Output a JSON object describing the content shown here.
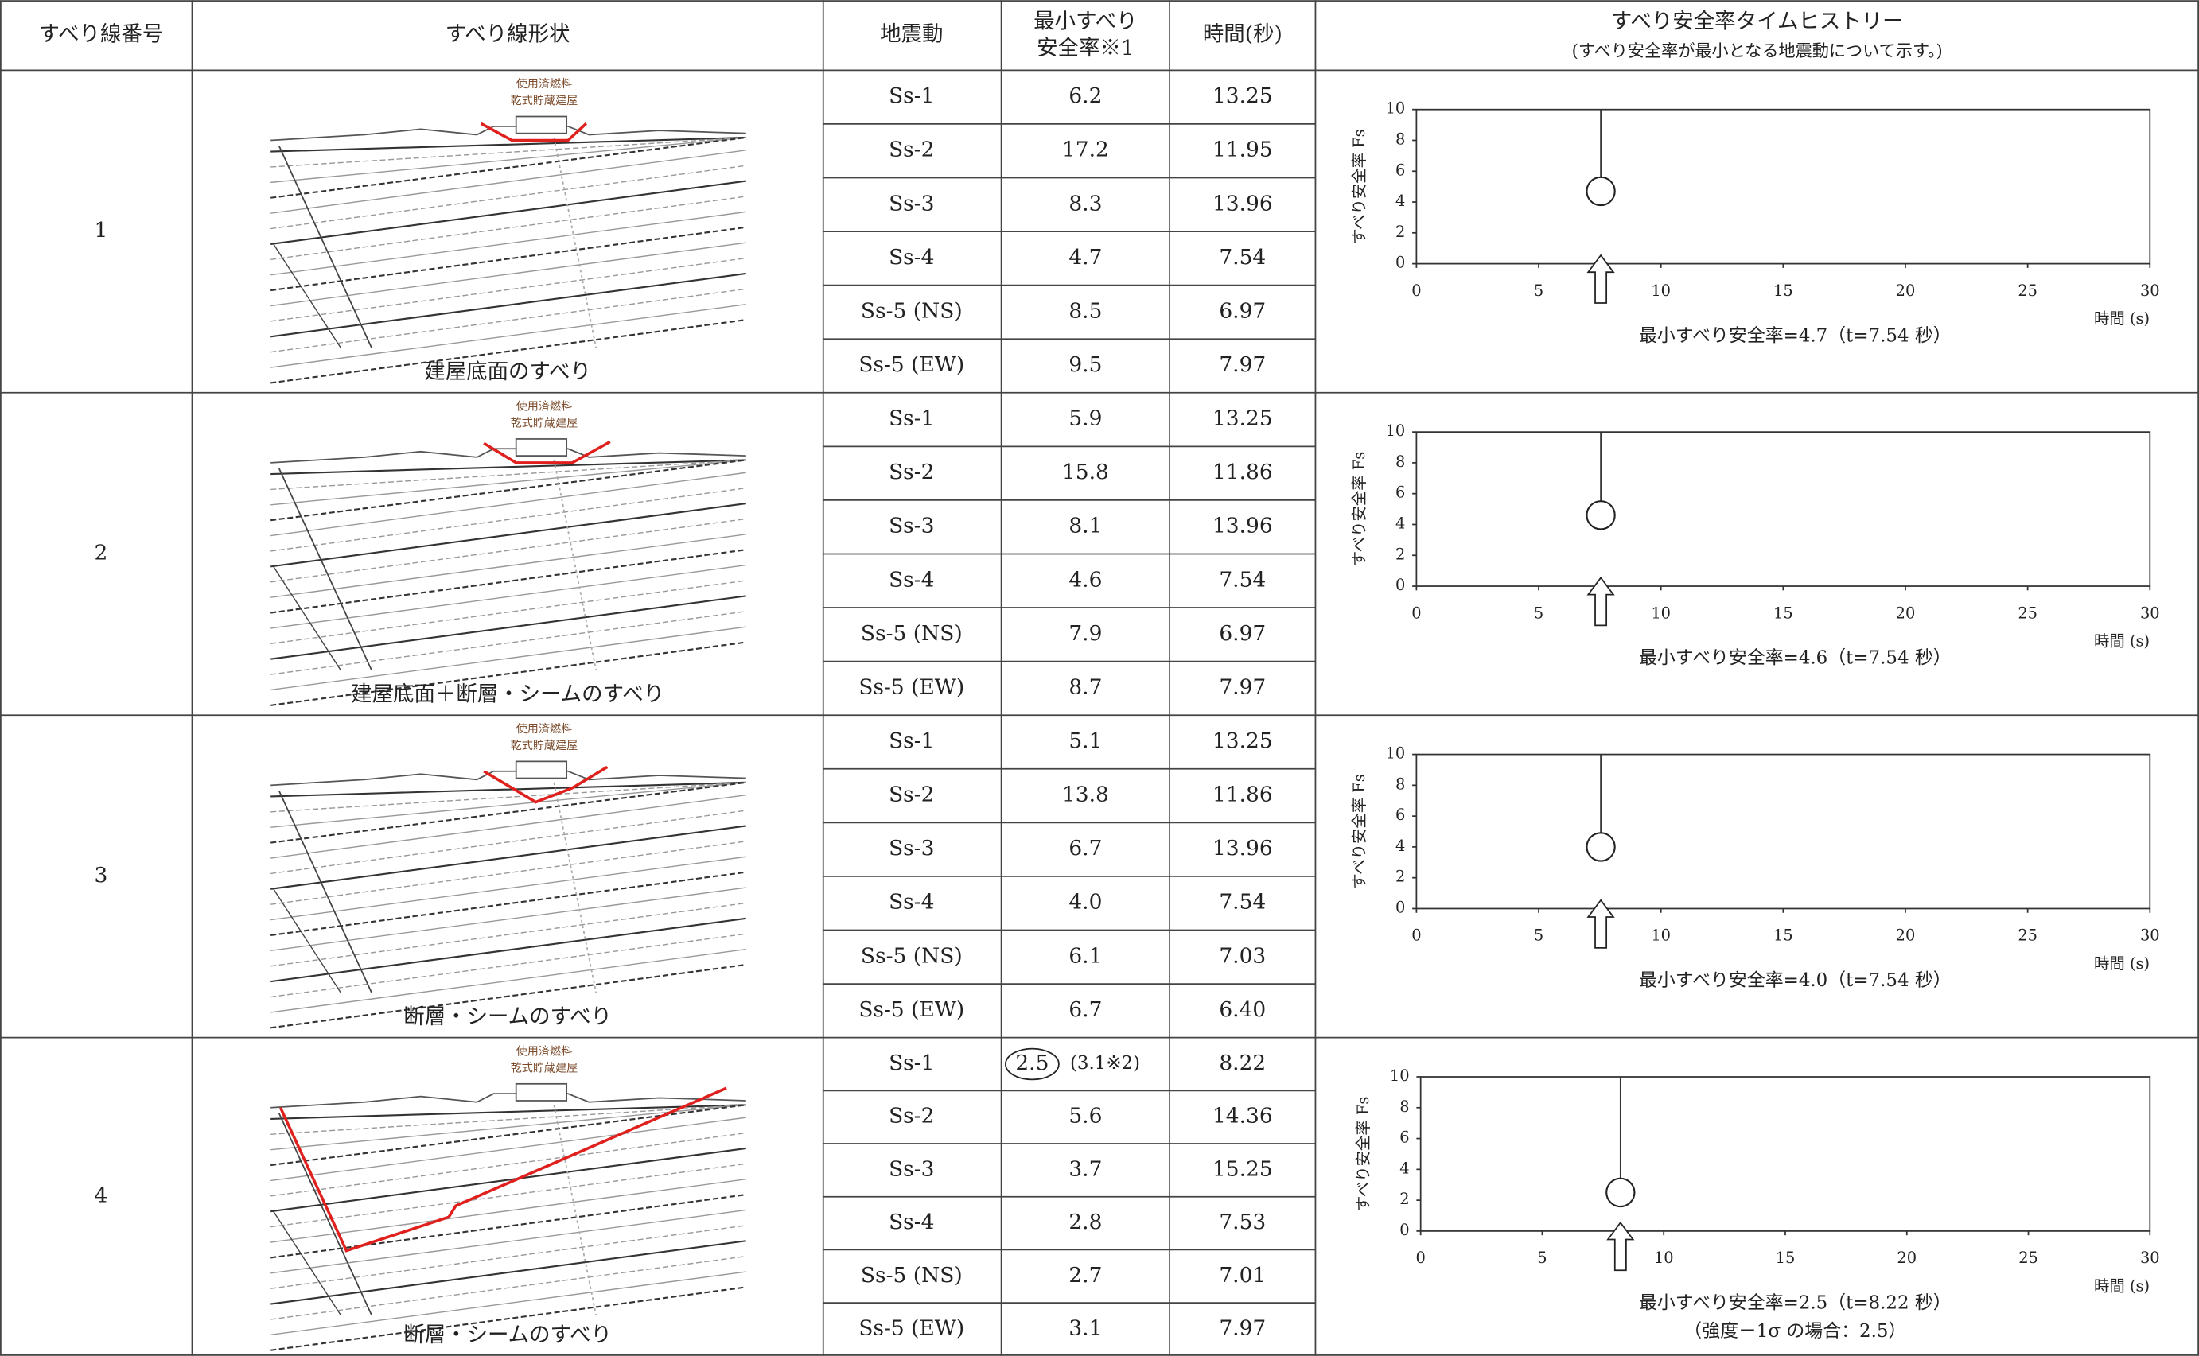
{
  "header": {
    "number": "すべり線番号",
    "shape": "すべり線形状",
    "motion": "地震動",
    "fs": [
      "最小すべり",
      "安全率※1"
    ],
    "time": "時間(秒)",
    "history": "すべり安全率タイムヒストリー",
    "history_note": "(すべり安全率が最小となる地震動について示す。)"
  },
  "rows": [
    {
      "number": "1",
      "caption": "建屋底面のすべり",
      "building": [
        "使用済燃料",
        "乾式貯蔵建屋"
      ],
      "motions": [
        {
          "name": "Ss-1",
          "fs": "6.2",
          "time": "13.25"
        },
        {
          "name": "Ss-2",
          "fs": "17.2",
          "time": "11.95"
        },
        {
          "name": "Ss-3",
          "fs": "8.3",
          "time": "13.96"
        },
        {
          "name": "Ss-4",
          "fs": "4.7",
          "time": "7.54"
        },
        {
          "name": "Ss-5 (NS)",
          "fs": "8.5",
          "time": "6.97"
        },
        {
          "name": "Ss-5 (EW)",
          "fs": "9.5",
          "time": "7.97"
        }
      ],
      "chart": {
        "type": "line",
        "ylabel": "すべり安全率 Fs",
        "xlabel": "時間 (s)",
        "xlim": [
          0,
          30
        ],
        "ylim": [
          0,
          10
        ],
        "xticks": [
          0,
          5,
          10,
          15,
          20,
          25,
          30
        ],
        "yticks": [
          0,
          2,
          4,
          6,
          8,
          10
        ],
        "min_x": 7.54,
        "min_y": 4.7,
        "note": [
          "最小すべり安全率=4.7（t=7.54 秒）"
        ]
      }
    },
    {
      "number": "2",
      "caption": "建屋底面＋断層・シームのすべり",
      "building": [
        "使用済燃料",
        "乾式貯蔵建屋"
      ],
      "motions": [
        {
          "name": "Ss-1",
          "fs": "5.9",
          "time": "13.25"
        },
        {
          "name": "Ss-2",
          "fs": "15.8",
          "time": "11.86"
        },
        {
          "name": "Ss-3",
          "fs": "8.1",
          "time": "13.96"
        },
        {
          "name": "Ss-4",
          "fs": "4.6",
          "time": "7.54"
        },
        {
          "name": "Ss-5 (NS)",
          "fs": "7.9",
          "time": "6.97"
        },
        {
          "name": "Ss-5 (EW)",
          "fs": "8.7",
          "time": "7.97"
        }
      ],
      "chart": {
        "type": "line",
        "ylabel": "すべり安全率 Fs",
        "xlabel": "時間 (s)",
        "xlim": [
          0,
          30
        ],
        "ylim": [
          0,
          10
        ],
        "xticks": [
          0,
          5,
          10,
          15,
          20,
          25,
          30
        ],
        "yticks": [
          0,
          2,
          4,
          6,
          8,
          10
        ],
        "min_x": 7.54,
        "min_y": 4.6,
        "note": [
          "最小すべり安全率=4.6（t=7.54 秒）"
        ]
      }
    },
    {
      "number": "3",
      "caption": "断層・シームのすべり",
      "building": [
        "使用済燃料",
        "乾式貯蔵建屋"
      ],
      "motions": [
        {
          "name": "Ss-1",
          "fs": "5.1",
          "time": "13.25"
        },
        {
          "name": "Ss-2",
          "fs": "13.8",
          "time": "11.86"
        },
        {
          "name": "Ss-3",
          "fs": "6.7",
          "time": "13.96"
        },
        {
          "name": "Ss-4",
          "fs": "4.0",
          "time": "7.54"
        },
        {
          "name": "Ss-5 (NS)",
          "fs": "6.1",
          "time": "7.03"
        },
        {
          "name": "Ss-5 (EW)",
          "fs": "6.7",
          "time": "6.40"
        }
      ],
      "chart": {
        "type": "line",
        "ylabel": "すべり安全率 Fs",
        "xlabel": "時間 (s)",
        "xlim": [
          0,
          30
        ],
        "ylim": [
          0,
          10
        ],
        "xticks": [
          0,
          5,
          10,
          15,
          20,
          25,
          30
        ],
        "yticks": [
          0,
          2,
          4,
          6,
          8,
          10
        ],
        "min_x": 7.54,
        "min_y": 4.0,
        "note": [
          "最小すべり安全率=4.0（t=7.54 秒）"
        ]
      }
    },
    {
      "number": "4",
      "caption": "断層・シームのすべり",
      "building": [
        "使用済燃料",
        "乾式貯蔵建屋"
      ],
      "motions": [
        {
          "name": "Ss-1",
          "fs": "2.5",
          "fs_note": "(3.1※2)",
          "time": "8.22"
        },
        {
          "name": "Ss-2",
          "fs": "5.6",
          "time": "14.36"
        },
        {
          "name": "Ss-3",
          "fs": "3.7",
          "time": "15.25"
        },
        {
          "name": "Ss-4",
          "fs": "2.8",
          "time": "7.53"
        },
        {
          "name": "Ss-5 (NS)",
          "fs": "2.7",
          "time": "7.01"
        },
        {
          "name": "Ss-5 (EW)",
          "fs": "3.1",
          "time": "7.97"
        }
      ],
      "chart": {
        "type": "line",
        "ylabel": "すべり安全率 Fs",
        "xlabel": "時間 (s)",
        "xlim": [
          0,
          30
        ],
        "ylim": [
          0,
          10
        ],
        "xticks": [
          0,
          5,
          10,
          15,
          20,
          25,
          30
        ],
        "yticks": [
          0,
          2,
          4,
          6,
          8,
          10
        ],
        "min_x": 8.22,
        "min_y": 2.5,
        "note": [
          "最小すべり安全率=2.5（t=8.22 秒）",
          "（強度－1σ の場合：2.5）"
        ]
      }
    }
  ]
}
